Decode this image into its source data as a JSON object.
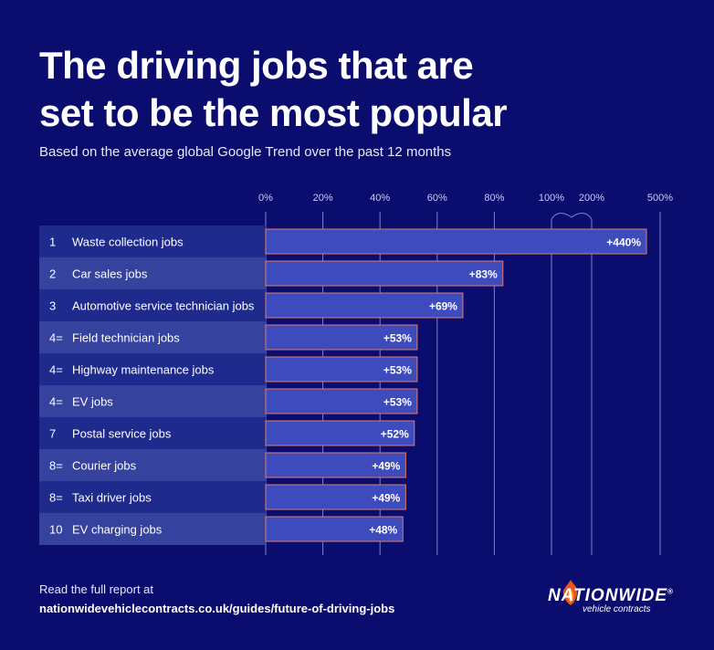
{
  "title": "The driving jobs that are\nset to be the most popular",
  "subtitle": "Based on the average global Google Trend over the past 12 months",
  "chart_data": {
    "type": "bar",
    "orientation": "horizontal",
    "axis_ticks": [
      "0%",
      "20%",
      "40%",
      "60%",
      "80%",
      "100%",
      "200%",
      "500%"
    ],
    "axis_break": "between 100% and 200%",
    "grid": true,
    "rows": [
      {
        "rank": "1",
        "label": "Waste collection jobs",
        "value": 440,
        "value_label": "+440%"
      },
      {
        "rank": "2",
        "label": "Car sales jobs",
        "value": 83,
        "value_label": "+83%"
      },
      {
        "rank": "3",
        "label": "Automotive service technician jobs",
        "value": 69,
        "value_label": "+69%"
      },
      {
        "rank": "4=",
        "label": "Field technician jobs",
        "value": 53,
        "value_label": "+53%"
      },
      {
        "rank": "4=",
        "label": "Highway maintenance jobs",
        "value": 53,
        "value_label": "+53%"
      },
      {
        "rank": "4=",
        "label": "EV jobs",
        "value": 53,
        "value_label": "+53%"
      },
      {
        "rank": "7",
        "label": "Postal service jobs",
        "value": 52,
        "value_label": "+52%"
      },
      {
        "rank": "8=",
        "label": "Courier jobs",
        "value": 49,
        "value_label": "+49%"
      },
      {
        "rank": "8=",
        "label": "Taxi driver jobs",
        "value": 49,
        "value_label": "+49%"
      },
      {
        "rank": "10",
        "label": "EV charging jobs",
        "value": 48,
        "value_label": "+48%"
      }
    ],
    "colors": {
      "background": "#0a0d6e",
      "bar_fill": "#3e4bbd",
      "bar_stroke": "#e07a6a",
      "row_dark": "#1e2a8c",
      "row_light": "#35429e",
      "grid": "#7b82c8"
    }
  },
  "footer": {
    "read_label": "Read the full report at",
    "url": "nationwidevehiclecontracts.co.uk/guides/future-of-driving-jobs"
  },
  "logo": {
    "wordmark": "NATIONWIDE",
    "registered": "®",
    "tagline": "vehicle contracts"
  }
}
